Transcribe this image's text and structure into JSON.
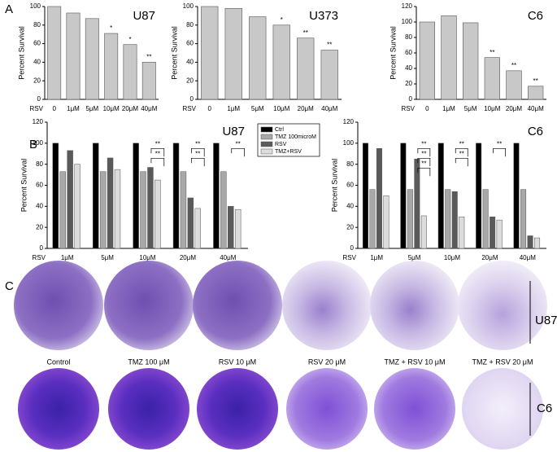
{
  "panels": [
    "A",
    "B",
    "C"
  ],
  "chart_data": [
    {
      "type": "bar",
      "title": "U87",
      "xlabel": "RSV",
      "ylabel": "Percent Survival",
      "categories": [
        "0",
        "1μM",
        "5μM",
        "10μM",
        "20μM",
        "40μM"
      ],
      "values": [
        100,
        93,
        87,
        71,
        59,
        40
      ],
      "significance": [
        null,
        null,
        null,
        "*",
        "*",
        "**"
      ],
      "color": "#c8c8c8",
      "ylim": [
        0,
        100
      ],
      "yticks": [
        0,
        20,
        40,
        60,
        80,
        100
      ]
    },
    {
      "type": "bar",
      "title": "U373",
      "xlabel": "RSV",
      "ylabel": "Percent Survival",
      "categories": [
        "0",
        "1μM",
        "5μM",
        "10μM",
        "20μM",
        "40μM"
      ],
      "values": [
        100,
        98,
        89,
        80,
        66,
        53
      ],
      "significance": [
        null,
        null,
        null,
        "*",
        "**",
        "**"
      ],
      "color": "#c8c8c8",
      "ylim": [
        0,
        100
      ],
      "yticks": [
        0,
        20,
        40,
        60,
        80,
        100
      ]
    },
    {
      "type": "bar",
      "title": "C6",
      "xlabel": "RSV",
      "ylabel": "Percent Survival",
      "categories": [
        "0",
        "1μM",
        "5μM",
        "10μM",
        "20μM",
        "40μM"
      ],
      "values": [
        100,
        108,
        99,
        54,
        37,
        17
      ],
      "significance": [
        null,
        null,
        null,
        "**",
        "**",
        "**"
      ],
      "color": "#c8c8c8",
      "ylim": [
        0,
        120
      ],
      "yticks": [
        0,
        20,
        40,
        60,
        80,
        100,
        120
      ]
    },
    {
      "type": "grouped_bar",
      "title": "U87",
      "xlabel": "RSV",
      "ylabel": "Percent Survival",
      "categories": [
        "1μM",
        "5μM",
        "10μM",
        "20μM",
        "40μM"
      ],
      "series": [
        {
          "name": "Ctrl",
          "color": "#000000",
          "values": [
            100,
            100,
            100,
            100,
            100
          ]
        },
        {
          "name": "TMZ 100microM",
          "color": "#a8a8a8",
          "values": [
            73,
            73,
            73,
            73,
            73
          ]
        },
        {
          "name": "RSV",
          "color": "#5a5a5a",
          "values": [
            93,
            86,
            77,
            48,
            40
          ]
        },
        {
          "name": "TMZ+RSV",
          "color": "#dcdcdc",
          "values": [
            80,
            75,
            65,
            38,
            37
          ]
        }
      ],
      "significance": [
        [],
        [],
        [
          "**",
          "**"
        ],
        [
          "**",
          "**"
        ],
        [
          "**"
        ]
      ],
      "legend": "right",
      "ylim": [
        0,
        120
      ],
      "yticks": [
        0,
        20,
        40,
        60,
        80,
        100,
        120
      ]
    },
    {
      "type": "grouped_bar",
      "title": "C6",
      "xlabel": "RSV",
      "ylabel": "Percent Survival",
      "categories": [
        "1μM",
        "5μM",
        "10μM",
        "20μM",
        "40μM"
      ],
      "series": [
        {
          "color": "#000000",
          "values": [
            100,
            100,
            100,
            100,
            100
          ]
        },
        {
          "color": "#a8a8a8",
          "values": [
            56,
            56,
            56,
            56,
            56
          ]
        },
        {
          "color": "#5a5a5a",
          "values": [
            95,
            85,
            54,
            30,
            12
          ]
        },
        {
          "color": "#dcdcdc",
          "values": [
            50,
            31,
            30,
            27,
            10
          ]
        }
      ],
      "significance": [
        [],
        [
          "**",
          "**",
          "**"
        ],
        [
          "**",
          "**"
        ],
        [
          "**"
        ],
        []
      ],
      "ylim": [
        0,
        120
      ],
      "yticks": [
        0,
        20,
        40,
        60,
        80,
        100,
        120
      ]
    }
  ],
  "plates": {
    "conditions": [
      "Control",
      "TMZ 100 μM",
      "RSV 10 μM",
      "RSV 20 μM",
      "TMZ + RSV 10 μM",
      "TMZ + RSV 20 μM"
    ],
    "cell_lines": [
      "U87",
      "C6"
    ]
  }
}
